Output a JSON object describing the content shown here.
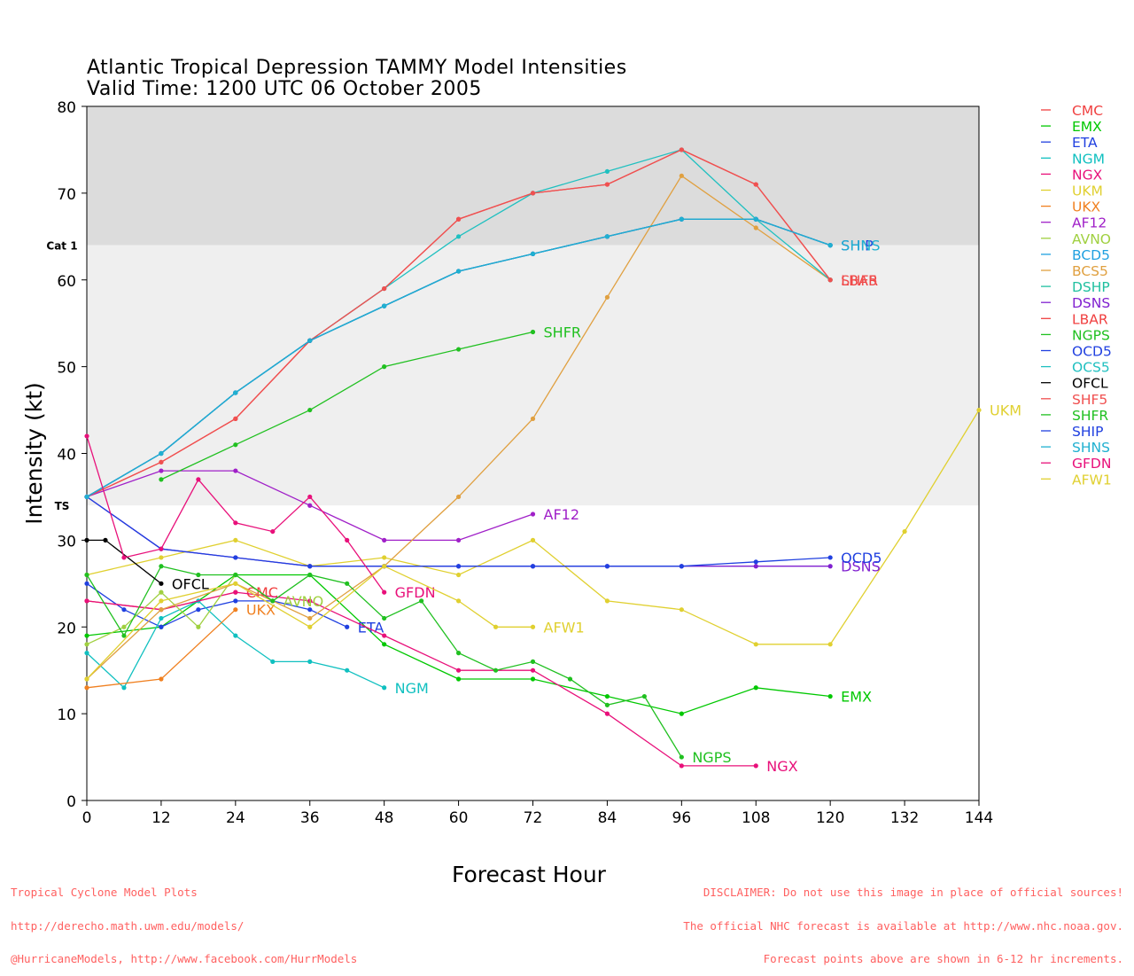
{
  "chart_data": {
    "type": "line",
    "title": "Atlantic Tropical Depression TAMMY Model Intensities",
    "subtitle": "Valid Time: 1200 UTC 06 October 2005",
    "xlabel": "Forecast Hour",
    "ylabel": "Intensity (kt)",
    "xlim": [
      0,
      144
    ],
    "ylim": [
      0,
      80
    ],
    "x_ticks": [
      0,
      12,
      24,
      36,
      48,
      60,
      72,
      84,
      96,
      108,
      120,
      132,
      144
    ],
    "y_ticks": [
      0,
      10,
      20,
      30,
      40,
      50,
      60,
      70,
      80
    ],
    "bands": [
      {
        "from": 64,
        "to": 80,
        "color": "#dcdcdc"
      },
      {
        "from": 34,
        "to": 64,
        "color": "#efefef"
      }
    ],
    "category_labels": [
      {
        "label": "Cat 1",
        "value": 64
      },
      {
        "label": "TS",
        "value": 34
      }
    ],
    "legend_placement": "right",
    "grid": false,
    "series": [
      {
        "name": "CMC",
        "color": "#f04040",
        "x": [
          0,
          12,
          24
        ],
        "y": [
          23,
          22,
          24
        ],
        "end_label": "CMC"
      },
      {
        "name": "EMX",
        "color": "#00c800",
        "x": [
          0,
          12,
          24,
          36,
          48,
          60,
          72,
          84,
          96,
          108,
          120
        ],
        "y": [
          19,
          20,
          26,
          26,
          18,
          14,
          14,
          12,
          10,
          13,
          12
        ],
        "end_label": "EMX"
      },
      {
        "name": "ETA",
        "color": "#2040e0",
        "x": [
          0,
          6,
          12,
          18,
          24,
          30,
          36,
          42
        ],
        "y": [
          25,
          22,
          20,
          22,
          23,
          23,
          22,
          20
        ],
        "end_label": "ETA"
      },
      {
        "name": "NGM",
        "color": "#10c0c0",
        "x": [
          0,
          6,
          12,
          18,
          24,
          30,
          36,
          42,
          48
        ],
        "y": [
          17,
          13,
          21,
          23,
          19,
          16,
          16,
          15,
          13
        ],
        "end_label": "NGM"
      },
      {
        "name": "NGX",
        "color": "#e8107a",
        "x": [
          0,
          12,
          24,
          36,
          48,
          60,
          72,
          84,
          96,
          108
        ],
        "y": [
          23,
          22,
          24,
          23,
          19,
          15,
          15,
          10,
          4,
          4
        ],
        "end_label": "NGX"
      },
      {
        "name": "UKM",
        "color": "#e0d030",
        "x": [
          0,
          12,
          24,
          36,
          48,
          60,
          72,
          84,
          96,
          108,
          120,
          132,
          144
        ],
        "y": [
          26,
          28,
          30,
          27,
          28,
          26,
          30,
          23,
          22,
          18,
          18,
          31,
          45
        ],
        "end_label": "UKM"
      },
      {
        "name": "UKX",
        "color": "#f08020",
        "x": [
          0,
          12,
          24
        ],
        "y": [
          13,
          14,
          22
        ],
        "end_label": "UKX"
      },
      {
        "name": "AF12",
        "color": "#a020c8",
        "x": [
          0,
          12,
          24,
          36,
          48,
          60,
          72
        ],
        "y": [
          35,
          38,
          38,
          34,
          30,
          30,
          33
        ],
        "end_label": "AF12"
      },
      {
        "name": "AVNO",
        "color": "#a0d040",
        "x": [
          0,
          6,
          12,
          18,
          24,
          30
        ],
        "y": [
          18,
          20,
          24,
          20,
          26,
          23
        ],
        "end_label": "AVNO"
      },
      {
        "name": "BCD5",
        "color": "#20a0e0",
        "x": [
          0,
          12,
          24,
          36,
          48,
          60,
          72,
          84,
          96,
          108,
          120
        ],
        "y": [
          35,
          40,
          47,
          53,
          57,
          61,
          63,
          65,
          67,
          67,
          64
        ],
        "end_label": ""
      },
      {
        "name": "BCS5",
        "color": "#e0a040",
        "x": [
          0,
          12,
          24,
          36,
          48,
          60,
          72,
          84,
          96,
          108,
          120
        ],
        "y": [
          14,
          22,
          25,
          21,
          27,
          35,
          44,
          58,
          72,
          66,
          60
        ],
        "end_label": ""
      },
      {
        "name": "DSHP",
        "color": "#20c0a0",
        "x": [
          0,
          12,
          24,
          36,
          48,
          60,
          72,
          84,
          96,
          108,
          120
        ],
        "y": [
          35,
          40,
          47,
          53,
          57,
          61,
          63,
          65,
          67,
          67,
          64
        ],
        "end_label": ""
      },
      {
        "name": "DSNS",
        "color": "#8020d0",
        "x": [
          0,
          12,
          24,
          36,
          48,
          60,
          72,
          84,
          96,
          108,
          120
        ],
        "y": [
          35,
          29,
          28,
          27,
          27,
          27,
          27,
          27,
          27,
          27,
          27
        ],
        "end_label": "DSNS"
      },
      {
        "name": "LBAR",
        "color": "#f04040",
        "x": [
          0,
          12,
          24,
          36,
          48,
          60,
          72,
          84,
          96,
          108,
          120
        ],
        "y": [
          35,
          39,
          44,
          53,
          59,
          67,
          70,
          71,
          75,
          71,
          60
        ],
        "end_label": "LBAR"
      },
      {
        "name": "NGPS",
        "color": "#20c020",
        "x": [
          0,
          6,
          12,
          18,
          24,
          30,
          36,
          42,
          48,
          54,
          60,
          66,
          72,
          78,
          84,
          90,
          96
        ],
        "y": [
          26,
          19,
          27,
          26,
          26,
          23,
          26,
          25,
          21,
          23,
          17,
          15,
          16,
          14,
          11,
          12,
          5
        ],
        "end_label": "NGPS"
      },
      {
        "name": "OCD5",
        "color": "#2040e0",
        "x": [
          0,
          12,
          24,
          36,
          48,
          60,
          72,
          84,
          96,
          108,
          120
        ],
        "y": [
          35,
          29,
          28,
          27,
          27,
          27,
          27,
          27,
          27,
          27.5,
          28
        ],
        "end_label": "OCD5"
      },
      {
        "name": "OCS5",
        "color": "#20c0c0",
        "x": [
          0,
          12,
          24,
          36,
          48,
          60,
          72,
          84,
          96,
          108,
          120
        ],
        "y": [
          35,
          40,
          47,
          53,
          59,
          65,
          70,
          72.5,
          75,
          67,
          60
        ],
        "end_label": ""
      },
      {
        "name": "OFCL",
        "color": "#000000",
        "x": [
          0,
          3,
          12
        ],
        "y": [
          30,
          30,
          25
        ],
        "end_label": "OFCL"
      },
      {
        "name": "SHF5",
        "color": "#f05050",
        "x": [
          0,
          12,
          24,
          36,
          48,
          60,
          72,
          84,
          96,
          108,
          120
        ],
        "y": [
          35,
          39,
          44,
          53,
          59,
          67,
          70,
          71,
          75,
          71,
          60
        ],
        "end_label": "SHF5"
      },
      {
        "name": "SHFR",
        "color": "#20c020",
        "x": [
          12,
          24,
          36,
          48,
          60,
          72
        ],
        "y": [
          37,
          41,
          45,
          50,
          52,
          54
        ],
        "end_label": "SHFR"
      },
      {
        "name": "SHIP",
        "color": "#2040e0",
        "x": [
          0,
          12,
          24,
          36,
          48,
          60,
          72,
          84,
          96,
          108,
          120
        ],
        "y": [
          35,
          40,
          47,
          53,
          57,
          61,
          63,
          65,
          67,
          67,
          64
        ],
        "end_label": "SHIP"
      },
      {
        "name": "SHNS",
        "color": "#20b0d0",
        "x": [
          0,
          12,
          24,
          36,
          48,
          60,
          72,
          84,
          96,
          108,
          120
        ],
        "y": [
          35,
          40,
          47,
          53,
          57,
          61,
          63,
          65,
          67,
          67,
          64
        ],
        "end_label": "SHNS"
      },
      {
        "name": "GFDN",
        "color": "#e8107a",
        "x": [
          0,
          6,
          12,
          18,
          24,
          30,
          36,
          42,
          48
        ],
        "y": [
          42,
          28,
          29,
          37,
          32,
          31,
          35,
          30,
          24
        ],
        "end_label": "GFDN"
      },
      {
        "name": "AFW1",
        "color": "#e0d030",
        "x": [
          0,
          12,
          24,
          36,
          48,
          60,
          66,
          72
        ],
        "y": [
          14,
          23,
          25,
          20,
          27,
          23,
          20,
          20
        ],
        "end_label": "AFW1"
      }
    ]
  },
  "footer": {
    "left": [
      "Tropical Cyclone Model Plots",
      "http://derecho.math.uwm.edu/models/",
      "@HurricaneModels, http://www.facebook.com/HurrModels"
    ],
    "right": [
      "DISCLAIMER: Do not use this image in place of official sources!",
      "The official NHC forecast is available at http://www.nhc.noaa.gov.",
      "Forecast points above are shown in 6-12 hr increments."
    ]
  }
}
